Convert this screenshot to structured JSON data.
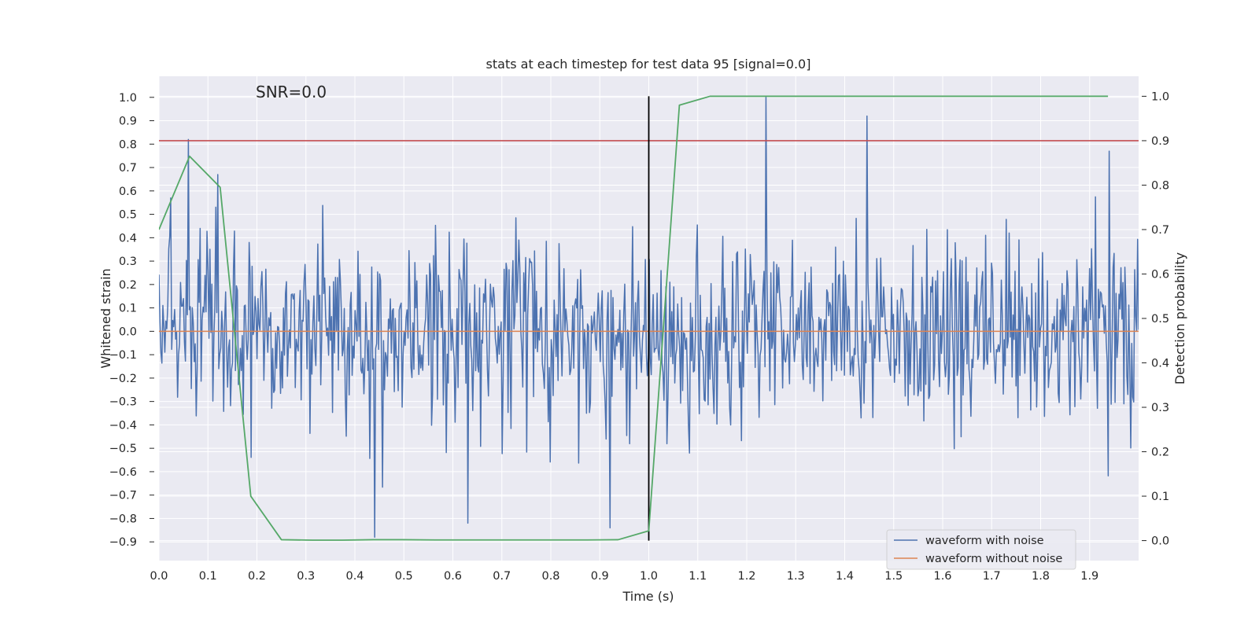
{
  "chart_data": {
    "type": "line",
    "title": "stats at each timestep for test data 95 [signal=0.0]",
    "xlabel": "Time (s)",
    "ylabel_left": "Whitened strain",
    "ylabel_right": "Detection probability",
    "annotation": "SNR=0.0",
    "xlim": [
      0.0,
      2.0
    ],
    "ylim_left": [
      -0.98,
      1.09
    ],
    "ylim_right": [
      -0.045,
      1.045
    ],
    "x_ticks": [
      "0.0",
      "0.1",
      "0.2",
      "0.3",
      "0.4",
      "0.5",
      "0.6",
      "0.7",
      "0.8",
      "0.9",
      "1.0",
      "1.1",
      "1.2",
      "1.3",
      "1.4",
      "1.5",
      "1.6",
      "1.7",
      "1.8",
      "1.9"
    ],
    "y_ticks_left": [
      "−0.9",
      "−0.8",
      "−0.7",
      "−0.6",
      "−0.5",
      "−0.4",
      "−0.3",
      "−0.2",
      "−0.1",
      "0.0",
      "0.1",
      "0.2",
      "0.3",
      "0.4",
      "0.5",
      "0.6",
      "0.7",
      "0.8",
      "0.9",
      "1.0"
    ],
    "y_ticks_right": [
      "0.0",
      "0.1",
      "0.2",
      "0.3",
      "0.4",
      "0.5",
      "0.6",
      "0.7",
      "0.8",
      "0.9",
      "1.0"
    ],
    "grid": true,
    "legend_position": "lower-right",
    "series": [
      {
        "name": "waveform with noise",
        "color": "#4c72b0",
        "axis": "left",
        "kind": "noise",
        "n_points": 1000,
        "sigma": 0.19,
        "seed": 95,
        "spikes": [
          [
            0.06,
            0.82
          ],
          [
            0.44,
            -0.88
          ],
          [
            1.24,
            1.0
          ],
          [
            1.445,
            0.92
          ],
          [
            0.12,
            0.67
          ],
          [
            0.025,
            0.57
          ],
          [
            0.92,
            -0.84
          ],
          [
            1.94,
            0.77
          ],
          [
            0.63,
            -0.82
          ]
        ]
      },
      {
        "name": "waveform without noise",
        "color": "#dd8452",
        "axis": "left",
        "kind": "constant",
        "value": 0.0
      },
      {
        "name": "detection probability",
        "color": "#55a868",
        "axis": "right",
        "kind": "line",
        "x": [
          0.0,
          0.0625,
          0.125,
          0.1875,
          0.25,
          0.3125,
          0.375,
          0.4375,
          0.5,
          0.5625,
          0.625,
          0.6875,
          0.75,
          0.8125,
          0.875,
          0.9375,
          1.0,
          1.0625,
          1.125,
          1.1875,
          1.25,
          1.3125,
          1.375,
          1.4375,
          1.5,
          1.5625,
          1.625,
          1.6875,
          1.75,
          1.8125,
          1.875,
          1.9375
        ],
        "y": [
          0.7,
          0.865,
          0.795,
          0.1,
          0.002,
          0.001,
          0.001,
          0.002,
          0.002,
          0.0015,
          0.0015,
          0.0015,
          0.0015,
          0.0015,
          0.0015,
          0.002,
          0.022,
          0.98,
          1.0,
          1.0,
          1.0,
          1.0,
          1.0,
          1.0,
          1.0,
          1.0,
          1.0,
          1.0,
          1.0,
          1.0,
          1.0,
          1.0
        ]
      }
    ],
    "threshold": {
      "value_right": 0.9,
      "color": "#c44e52"
    },
    "vline": {
      "x": 1.0,
      "ymin_right": 0.0,
      "ymax_right": 1.0,
      "color": "#000000"
    }
  }
}
